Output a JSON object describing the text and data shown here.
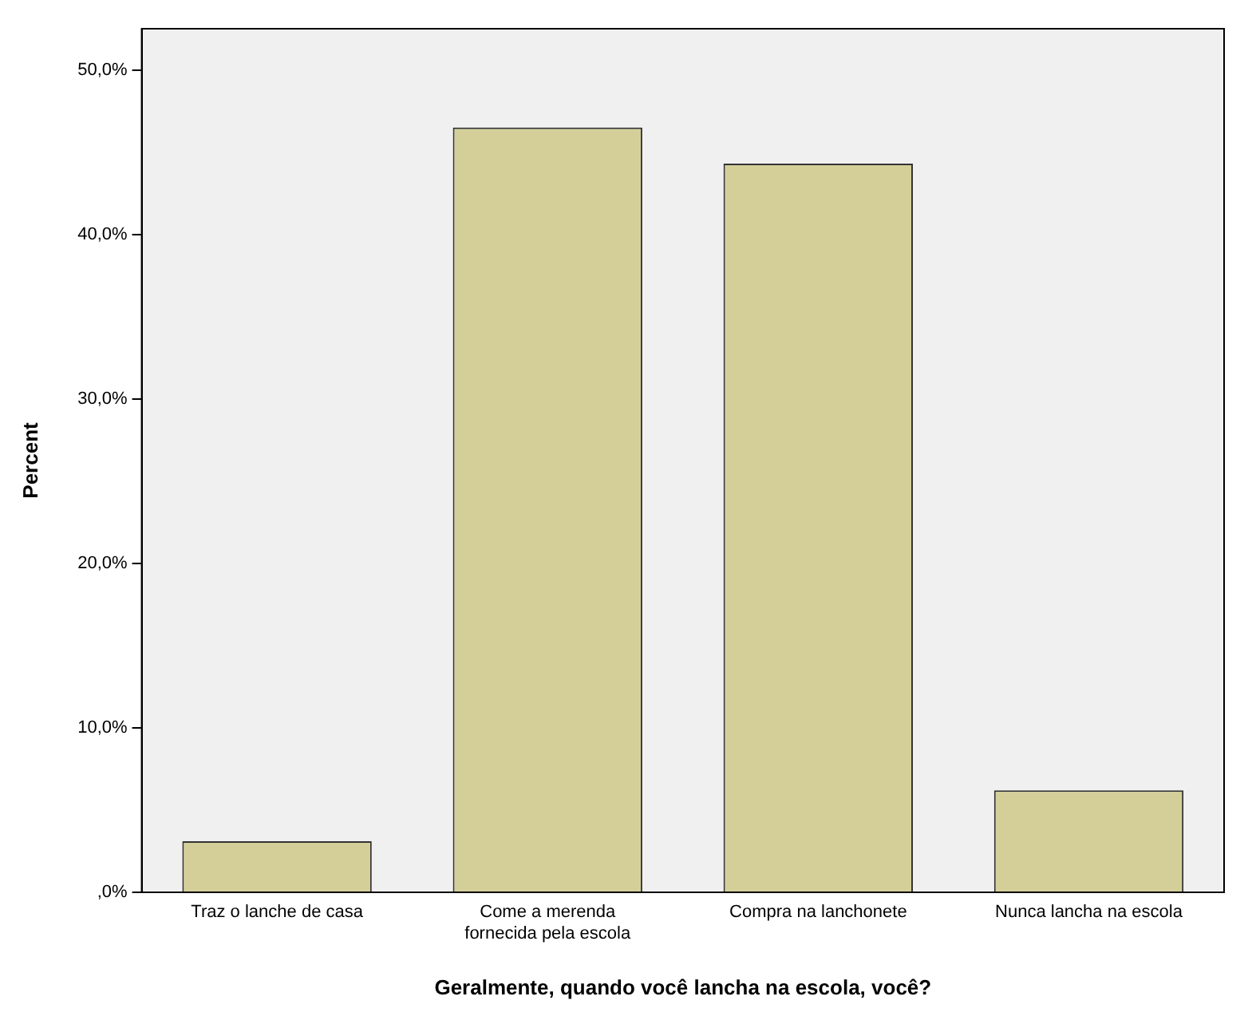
{
  "chart_data": {
    "type": "bar",
    "xlabel": "Geralmente, quando você lancha na escola, você?",
    "ylabel": "Percent",
    "categories": [
      "Traz o lanche de casa",
      "Come a merenda\nfornecida pela escola",
      "Compra na lanchonete",
      "Nunca lancha na escola"
    ],
    "values": [
      3.1,
      46.5,
      44.3,
      6.2
    ],
    "color": "#d4cf99",
    "ylim": [
      0,
      52.5
    ],
    "yticks": [
      {
        "value": 0,
        "label": ",0%"
      },
      {
        "value": 10,
        "label": "10,0%"
      },
      {
        "value": 20,
        "label": "20,0%"
      },
      {
        "value": 30,
        "label": "30,0%"
      },
      {
        "value": 40,
        "label": "40,0%"
      },
      {
        "value": 50,
        "label": "50,0%"
      }
    ],
    "grid": false,
    "legend": false
  }
}
